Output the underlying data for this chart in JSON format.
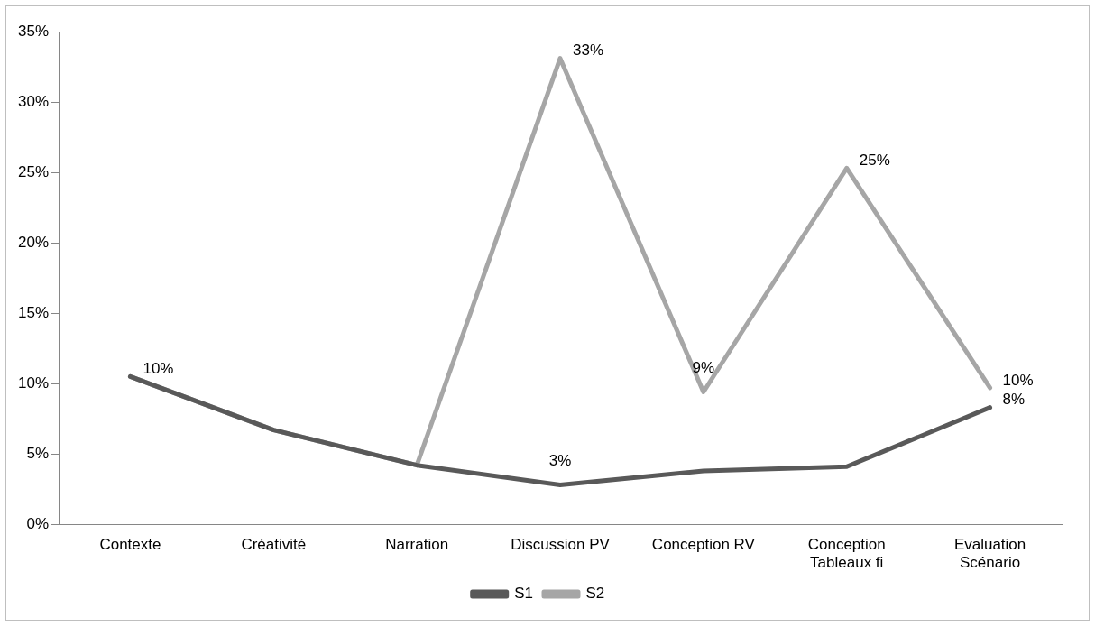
{
  "chart_data": {
    "type": "line",
    "categories": [
      "Contexte",
      "Créativité",
      "Narration",
      "Discussion PV",
      "Conception RV",
      "Conception Tableaux fi",
      "Evaluation Scénario"
    ],
    "series": [
      {
        "name": "S1",
        "color": "#595959",
        "values": [
          10.5,
          6.7,
          4.2,
          2.8,
          3.8,
          4.1,
          8.3
        ],
        "value_labels": [
          null,
          null,
          null,
          "3%",
          null,
          null,
          "8%"
        ]
      },
      {
        "name": "S2",
        "color": "#a6a6a6",
        "values": [
          10.5,
          6.7,
          4.2,
          33.1,
          9.4,
          25.3,
          9.7
        ],
        "value_labels": [
          "10%",
          null,
          null,
          "33%",
          "9%",
          "25%",
          "10%"
        ]
      }
    ],
    "ylim": [
      0,
      35
    ],
    "yticks": [
      {
        "value": 0,
        "label": "0%"
      },
      {
        "value": 5,
        "label": "5%"
      },
      {
        "value": 10,
        "label": "10%"
      },
      {
        "value": 15,
        "label": "15%"
      },
      {
        "value": 20,
        "label": "20%"
      },
      {
        "value": 25,
        "label": "25%"
      },
      {
        "value": 30,
        "label": "30%"
      },
      {
        "value": 35,
        "label": "35%"
      }
    ],
    "grid": false,
    "legend": "bottom",
    "marker": "none",
    "line_style": "solid"
  }
}
